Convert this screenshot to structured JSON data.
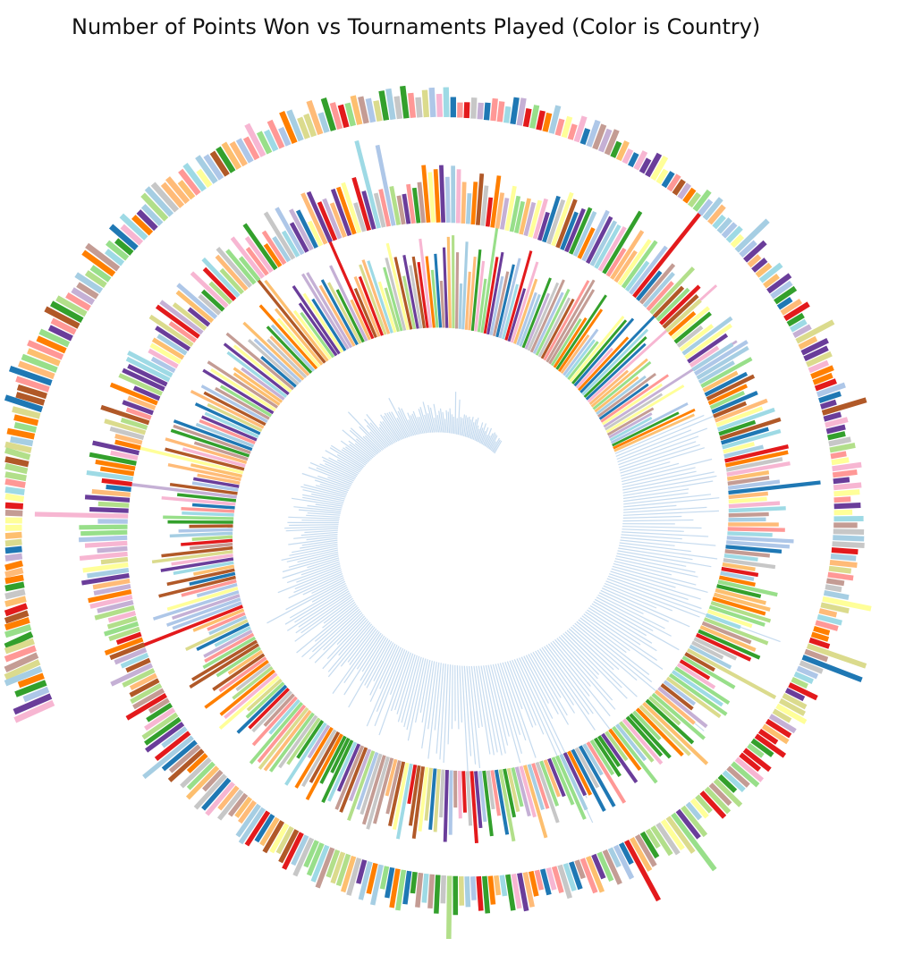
{
  "chart_data": {
    "type": "bar",
    "layout": "spiral",
    "title": "Number of Points Won vs Tournaments Played (Color is Country)",
    "encoding": {
      "bar_length": "Number of Points Won",
      "spiral_position": "Tournaments Played",
      "color": "Country"
    },
    "turns": 3.4,
    "estimated_bar_count": 1300,
    "series_profile": {
      "description": "Bar length (relative, 0-1) read along the spiral from the inner start (most tournaments) outward",
      "turn_position": [
        0.0,
        0.3,
        0.6,
        1.0,
        1.5,
        2.0,
        2.5,
        3.0,
        3.4
      ],
      "relative_length": [
        0.1,
        0.3,
        0.6,
        0.55,
        0.45,
        0.35,
        0.25,
        0.15,
        0.3
      ]
    },
    "palette": [
      "#aec7e8",
      "#ffbb78",
      "#98df8a",
      "#ff9896",
      "#c5b0d5",
      "#c49c94",
      "#f7b6d2",
      "#c7c7c7",
      "#dbdb8d",
      "#9edae5",
      "#ffff99",
      "#1f78b4",
      "#e31a1c",
      "#33a02c",
      "#ff7f00",
      "#6a3d9a",
      "#b15928",
      "#a6cee3",
      "#fdbf6f",
      "#b2df8a"
    ],
    "inner_color": "#c6dbef",
    "legend": "none",
    "grid": false
  }
}
